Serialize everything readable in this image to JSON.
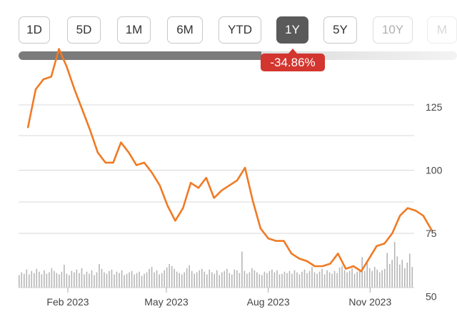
{
  "range_selector": {
    "buttons": [
      {
        "label": "1D",
        "state": "normal"
      },
      {
        "label": "5D",
        "state": "normal"
      },
      {
        "label": "1M",
        "state": "normal"
      },
      {
        "label": "6M",
        "state": "normal"
      },
      {
        "label": "YTD",
        "state": "normal"
      },
      {
        "label": "1Y",
        "state": "active"
      },
      {
        "label": "5Y",
        "state": "normal"
      },
      {
        "label": "10Y",
        "state": "faded"
      },
      {
        "label": "M",
        "state": "faded2"
      }
    ]
  },
  "change_badge": {
    "text": "-34.86%",
    "color": "#d2362f"
  },
  "colors": {
    "line": "#f07a24",
    "volume": "#b5b5b5",
    "grid": "#d9d9d9",
    "active_button": "#5a5a5a"
  },
  "chart_data": [
    {
      "type": "line",
      "title": "",
      "xlabel": "",
      "ylabel": "",
      "x_tick_labels": [
        "Feb 2023",
        "May 2023",
        "Aug 2023",
        "Nov 2023"
      ],
      "y_tick_labels": [
        "125",
        "100",
        "75",
        "50"
      ],
      "ylim": [
        50,
        150
      ],
      "grid": true,
      "axis_side": "right",
      "series": [
        {
          "x": [
            "2022-12-27",
            "2023-01-03",
            "2023-01-10",
            "2023-01-17",
            "2023-01-24",
            "2023-01-31",
            "2023-02-07",
            "2023-02-14",
            "2023-02-21",
            "2023-02-28",
            "2023-03-07",
            "2023-03-14",
            "2023-03-21",
            "2023-03-28",
            "2023-04-04",
            "2023-04-11",
            "2023-04-18",
            "2023-04-25",
            "2023-05-02",
            "2023-05-09",
            "2023-05-16",
            "2023-05-23",
            "2023-05-30",
            "2023-06-06",
            "2023-06-13",
            "2023-06-20",
            "2023-06-27",
            "2023-07-04",
            "2023-07-11",
            "2023-07-18",
            "2023-07-25",
            "2023-08-01",
            "2023-08-08",
            "2023-08-15",
            "2023-08-22",
            "2023-08-29",
            "2023-09-05",
            "2023-09-12",
            "2023-09-19",
            "2023-09-26",
            "2023-10-03",
            "2023-10-10",
            "2023-10-17",
            "2023-10-24",
            "2023-10-31",
            "2023-11-07",
            "2023-11-14",
            "2023-11-21",
            "2023-11-28",
            "2023-12-05",
            "2023-12-12",
            "2023-12-19",
            "2023-12-27"
          ],
          "values": [
            117,
            132,
            136,
            137,
            148,
            141,
            132,
            124,
            116,
            107,
            103,
            103,
            111,
            107,
            102,
            103,
            99,
            94,
            86,
            80,
            85,
            95,
            93,
            97,
            89,
            92,
            94,
            96,
            101,
            88,
            77,
            73,
            72,
            72,
            67,
            65,
            64,
            62,
            62,
            63,
            67,
            61,
            62,
            60,
            65,
            70,
            71,
            75,
            82,
            85,
            84,
            82,
            76
          ]
        }
      ]
    },
    {
      "type": "bar",
      "title": "",
      "series": [
        {
          "name": "",
          "values": [
            18,
            22,
            20,
            26,
            19,
            24,
            21,
            27,
            23,
            19,
            25,
            20,
            22,
            28,
            24,
            21,
            19,
            23,
            33,
            20,
            18,
            24,
            22,
            26,
            21,
            28,
            19,
            23,
            20,
            25,
            18,
            22,
            34,
            27,
            22,
            20,
            24,
            26,
            19,
            23,
            21,
            25,
            18,
            20,
            22,
            24,
            19,
            21,
            23,
            17,
            20,
            22,
            27,
            30,
            22,
            25,
            19,
            21,
            25,
            29,
            34,
            31,
            27,
            23,
            21,
            19,
            22,
            28,
            32,
            24,
            20,
            22,
            25,
            27,
            23,
            19,
            26,
            22,
            20,
            25,
            18,
            22,
            24,
            27,
            21,
            19,
            26,
            25,
            21,
            52,
            24,
            20,
            22,
            28,
            25,
            22,
            19,
            18,
            23,
            21,
            24,
            26,
            22,
            25,
            19,
            20,
            23,
            21,
            24,
            20,
            25,
            22,
            19,
            23,
            26,
            21,
            24,
            30,
            22,
            20,
            23,
            27,
            19,
            25,
            22,
            20,
            24,
            21,
            29,
            31,
            25,
            22,
            24,
            28,
            20,
            23,
            26,
            44,
            24,
            37,
            28,
            24,
            30,
            26,
            22,
            25,
            27,
            50,
            34,
            40,
            66,
            45,
            33,
            40,
            28,
            36,
            49,
            30
          ]
        }
      ]
    }
  ]
}
